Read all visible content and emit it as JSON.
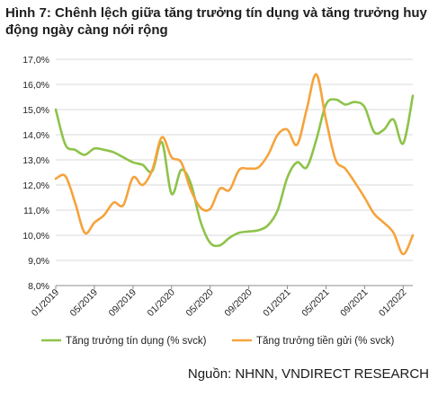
{
  "figure": {
    "title": "Hình 7: Chênh lệch giữa tăng trưởng tín dụng và tăng trưởng huy động ngày càng nới rộng",
    "source": "Nguồn: NHNN, VNDIRECT RESEARCH"
  },
  "chart_data": {
    "type": "line",
    "y_tick_labels": [
      "8,0%",
      "9,0%",
      "10,0%",
      "11,0%",
      "12,0%",
      "13,0%",
      "14,0%",
      "15,0%",
      "16,0%",
      "17,0%"
    ],
    "ylim": [
      8,
      17
    ],
    "x_tick_labels": [
      "01/2019",
      "05/2019",
      "09/2019",
      "01/2020",
      "05/2020",
      "09/2020",
      "01/2021",
      "05/2021",
      "09/2021",
      "01/2022"
    ],
    "x_start": "01/2019",
    "x_end": "02/2022",
    "grid": "horizontal",
    "legend_position": "bottom",
    "series": [
      {
        "name": "Tăng trưởng tín dụng (% svck)",
        "color": "#8dc34a",
        "points": [
          [
            0,
            15.0
          ],
          [
            1,
            13.6
          ],
          [
            2,
            13.4
          ],
          [
            3,
            13.2
          ],
          [
            4,
            13.45
          ],
          [
            5,
            13.4
          ],
          [
            6,
            13.3
          ],
          [
            7,
            13.1
          ],
          [
            8,
            12.9
          ],
          [
            9,
            12.8
          ],
          [
            10,
            12.55
          ],
          [
            11,
            13.7
          ],
          [
            12,
            11.65
          ],
          [
            13,
            12.6
          ],
          [
            14,
            12.05
          ],
          [
            15,
            10.55
          ],
          [
            16,
            9.7
          ],
          [
            17,
            9.6
          ],
          [
            18,
            9.9
          ],
          [
            19,
            10.1
          ],
          [
            20,
            10.15
          ],
          [
            21,
            10.2
          ],
          [
            22,
            10.4
          ],
          [
            23,
            11.0
          ],
          [
            24,
            12.3
          ],
          [
            25,
            12.9
          ],
          [
            26,
            12.7
          ],
          [
            27,
            13.8
          ],
          [
            28,
            15.2
          ],
          [
            29,
            15.4
          ],
          [
            30,
            15.2
          ],
          [
            31,
            15.3
          ],
          [
            32,
            15.1
          ],
          [
            33,
            14.1
          ],
          [
            34,
            14.2
          ],
          [
            35,
            14.6
          ],
          [
            36,
            13.65
          ],
          [
            37,
            15.55
          ]
        ]
      },
      {
        "name": "Tăng trưởng tiền gửi (% svck)",
        "color": "#f5a33c",
        "points": [
          [
            0,
            12.25
          ],
          [
            1,
            12.35
          ],
          [
            2,
            11.3
          ],
          [
            3,
            10.1
          ],
          [
            4,
            10.5
          ],
          [
            5,
            10.8
          ],
          [
            6,
            11.3
          ],
          [
            7,
            11.2
          ],
          [
            8,
            12.3
          ],
          [
            9,
            12.0
          ],
          [
            10,
            12.6
          ],
          [
            11,
            13.9
          ],
          [
            12,
            13.1
          ],
          [
            13,
            12.9
          ],
          [
            14,
            11.8
          ],
          [
            15,
            11.1
          ],
          [
            16,
            11.05
          ],
          [
            17,
            11.85
          ],
          [
            18,
            11.8
          ],
          [
            19,
            12.6
          ],
          [
            20,
            12.65
          ],
          [
            21,
            12.7
          ],
          [
            22,
            13.2
          ],
          [
            23,
            14.0
          ],
          [
            24,
            14.2
          ],
          [
            25,
            13.6
          ],
          [
            26,
            15.0
          ],
          [
            27,
            16.4
          ],
          [
            28,
            14.6
          ],
          [
            29,
            13.0
          ],
          [
            30,
            12.65
          ],
          [
            31,
            12.1
          ],
          [
            32,
            11.5
          ],
          [
            33,
            10.85
          ],
          [
            34,
            10.5
          ],
          [
            35,
            10.1
          ],
          [
            36,
            9.25
          ],
          [
            37,
            10.0
          ]
        ]
      }
    ]
  }
}
